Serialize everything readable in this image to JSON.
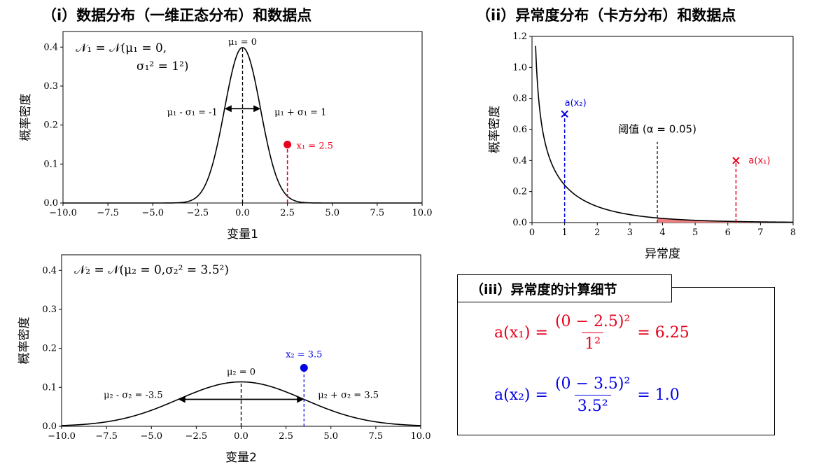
{
  "titles": {
    "panel1": "（i）数据分布（一维正态分布）和数据点",
    "panel2": "（ii）异常度分布（卡方分布）和数据点",
    "panel3": "（iii）异常度的计算细节"
  },
  "colors": {
    "red": "#e8001c",
    "blue": "#0000e6",
    "fill_red": "#f08080",
    "black": "#000000"
  },
  "chart_data": [
    {
      "type": "line",
      "id": "panel1",
      "xlabel": "变量1",
      "ylabel": "概率密度",
      "xlim": [
        -10,
        10
      ],
      "ylim": [
        0,
        0.44
      ],
      "xticks": [
        "−10.0",
        "−7.5",
        "−5.0",
        "−2.5",
        "0.0",
        "2.5",
        "5.0",
        "7.5",
        "10.0"
      ],
      "yticks": [
        "0.0",
        "0.1",
        "0.2",
        "0.3",
        "0.4"
      ],
      "series": [
        {
          "distribution": "normal",
          "mu": 0,
          "sigma": 1
        }
      ],
      "dist_label_line1": "𝒩₁ = 𝒩(μ₁ = 0,",
      "dist_label_line2": "σ₁² = 1²)",
      "mean_label": "μ₁ = 0",
      "minus_label": "μ₁ - σ₁ = -1",
      "plus_label": "μ₁ + σ₁ = 1",
      "point": {
        "x": 2.5,
        "y": 0.15,
        "label": "x₁ = 2.5",
        "color": "red"
      }
    },
    {
      "type": "line",
      "id": "panel2",
      "xlabel": "变量2",
      "ylabel": "概率密度",
      "xlim": [
        -10,
        10
      ],
      "ylim": [
        0,
        0.44
      ],
      "xticks": [
        "−10.0",
        "−7.5",
        "−5.0",
        "−2.5",
        "0.0",
        "2.5",
        "5.0",
        "7.5",
        "10.0"
      ],
      "yticks": [
        "0.0",
        "0.1",
        "0.2",
        "0.3",
        "0.4"
      ],
      "series": [
        {
          "distribution": "normal",
          "mu": 0,
          "sigma": 3.5
        }
      ],
      "dist_label": "𝒩₂ = 𝒩(μ₂ = 0,σ₂² = 3.5²)",
      "mean_label": "μ₂ = 0",
      "minus_label": "μ₂ - σ₂ = -3.5",
      "plus_label": "μ₂ + σ₂ = 3.5",
      "point": {
        "x": 3.5,
        "y": 0.15,
        "label": "x₂ = 3.5",
        "color": "blue"
      }
    },
    {
      "type": "line",
      "id": "panel3",
      "xlabel": "异常度",
      "ylabel": "概率密度",
      "xlim": [
        0,
        8
      ],
      "ylim": [
        0,
        1.2
      ],
      "xticks": [
        "0",
        "1",
        "2",
        "3",
        "4",
        "5",
        "6",
        "7",
        "8"
      ],
      "yticks": [
        "0.0",
        "0.2",
        "0.4",
        "0.6",
        "0.8",
        "1.0",
        "1.2"
      ],
      "series": [
        {
          "distribution": "chi2",
          "df": 1
        }
      ],
      "threshold": {
        "x": 3.84,
        "label": "阈值 (α = 0.05)"
      },
      "markers": [
        {
          "x": 1.0,
          "y": 0.7,
          "label": "a(x₂)",
          "color": "blue"
        },
        {
          "x": 6.25,
          "y": 0.4,
          "label": "a(x₁)",
          "color": "red"
        }
      ]
    }
  ],
  "formulas": [
    {
      "lhs": "a(x₁) =",
      "num": "(0 − 2.5)²",
      "den": "1²",
      "rhs": "= 6.25",
      "color": "red"
    },
    {
      "lhs": "a(x₂) =",
      "num": "(0 − 3.5)²",
      "den": "3.5²",
      "rhs": "= 1.0",
      "color": "blue"
    }
  ]
}
